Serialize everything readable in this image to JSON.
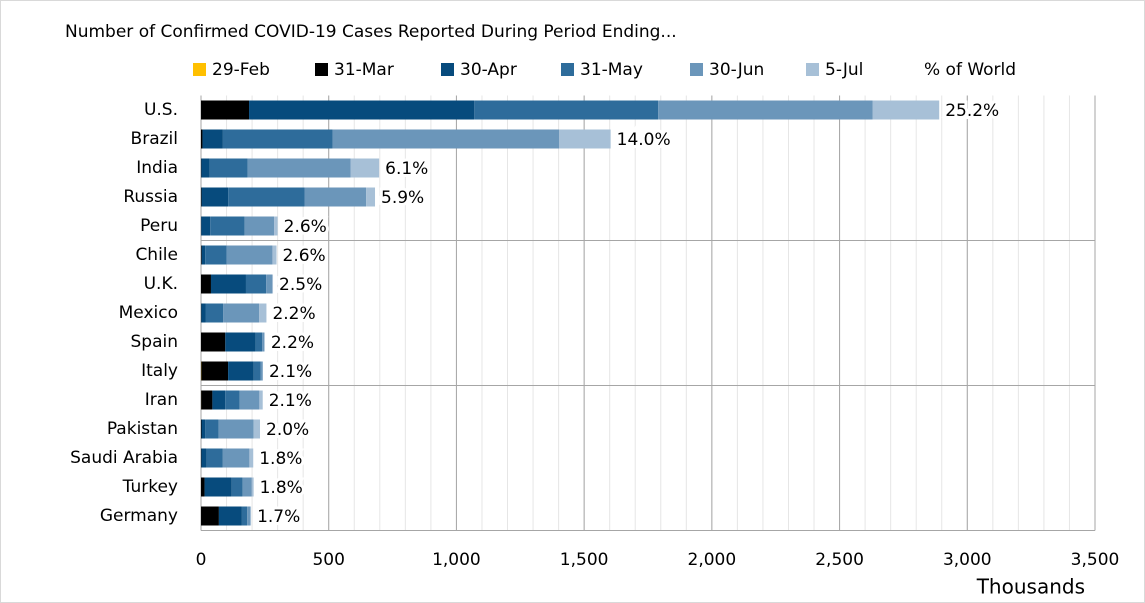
{
  "chart_data": {
    "type": "stacked-bar-horizontal",
    "title": "Number of Confirmed COVID-19 Cases Reported During Period Ending...",
    "x_label": "Thousands",
    "categories": [
      "U.S.",
      "Brazil",
      "India",
      "Russia",
      "Peru",
      "Chile",
      "U.K.",
      "Mexico",
      "Spain",
      "Italy",
      "Iran",
      "Pakistan",
      "Saudi Arabia",
      "Turkey",
      "Germany"
    ],
    "series": [
      {
        "name": "29-Feb",
        "color": "#ffc000",
        "values": [
          0.07,
          0,
          0,
          0,
          0,
          0,
          0.02,
          0,
          0.05,
          1.1,
          0.6,
          0,
          0,
          0,
          0.08
        ]
      },
      {
        "name": "31-Mar",
        "color": "#000000",
        "values": [
          188,
          5.7,
          1.4,
          2.3,
          1,
          2.7,
          39,
          1.2,
          95,
          105,
          44,
          2,
          1.5,
          14,
          70
        ]
      },
      {
        "name": "30-Apr",
        "color": "#074b7d",
        "values": [
          882,
          80,
          33,
          104,
          35,
          14,
          137,
          18,
          118,
          100,
          50,
          15,
          21,
          106,
          90
        ]
      },
      {
        "name": "31-May",
        "color": "#2e6c9b",
        "values": [
          720,
          429,
          148,
          299,
          135,
          83,
          79,
          68,
          26,
          28,
          57,
          52,
          63,
          43,
          21
        ]
      },
      {
        "name": "30-Jun",
        "color": "#6b96ba",
        "values": [
          840,
          888,
          403,
          241,
          115,
          180,
          23,
          140,
          8,
          7.6,
          77,
          137,
          104,
          36,
          12
        ]
      },
      {
        "name": "5-Jul",
        "color": "#a7c0d7",
        "values": [
          260,
          201,
          112,
          35,
          14,
          16,
          4,
          29,
          3,
          1,
          13,
          25,
          15,
          7,
          3
        ]
      }
    ],
    "percent_series": {
      "name": "% of World",
      "values": [
        25.2,
        14.0,
        6.1,
        5.9,
        2.6,
        2.6,
        2.5,
        2.2,
        2.2,
        2.1,
        2.1,
        2.0,
        1.8,
        1.8,
        1.7
      ],
      "value_labels": [
        "25.2%",
        "14.0%",
        "6.1%",
        "5.9%",
        "2.6%",
        "2.6%",
        "2.5%",
        "2.2%",
        "2.2%",
        "2.1%",
        "2.1%",
        "2.0%",
        "1.8%",
        "1.8%",
        "1.7%"
      ]
    },
    "xlim": [
      0,
      3500
    ],
    "xticks": [
      0,
      500,
      {
        "value": 1000,
        "label": "1,000"
      },
      {
        "value": 1500,
        "label": "1,500"
      },
      {
        "value": 2000,
        "label": "2,000"
      },
      {
        "value": 2500,
        "label": "2,500"
      },
      {
        "value": 3000,
        "label": "3,000"
      },
      {
        "value": 3500,
        "label": "3,500"
      }
    ],
    "grid": true,
    "minor_grid_step": 100,
    "group_size": 5
  }
}
